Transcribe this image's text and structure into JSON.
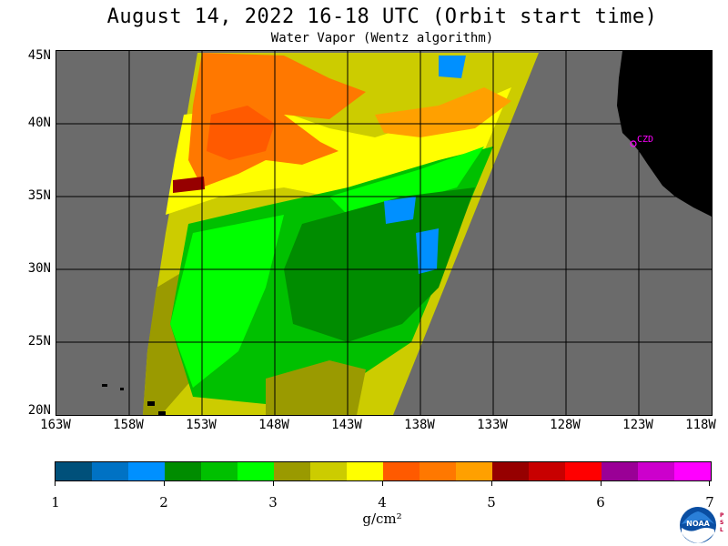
{
  "header": {
    "title": "August 14, 2022  16-18 UTC  (Orbit start time)",
    "subtitle": "Water Vapor (Wentz algorithm)"
  },
  "map": {
    "lat_labels": [
      "45N",
      "40N",
      "35N",
      "30N",
      "25N",
      "20N"
    ],
    "lon_labels": [
      "163W",
      "158W",
      "153W",
      "148W",
      "143W",
      "138W",
      "133W",
      "128W",
      "123W",
      "118W"
    ],
    "station_label": "CZD",
    "colors": {
      "no_data": "#6b6b6b",
      "land": "#000000",
      "grid": "#000000",
      "station": "#ff00ff"
    }
  },
  "colorbar": {
    "tick_labels": [
      "1",
      "2",
      "3",
      "4",
      "5",
      "6",
      "7"
    ],
    "unit": "g/cm²",
    "colors": [
      "#00507a",
      "#0072c4",
      "#0090ff",
      "#008c00",
      "#00c000",
      "#00ff00",
      "#9a9a00",
      "#cccc00",
      "#ffff00",
      "#ff5a00",
      "#ff7800",
      "#ffa000",
      "#960000",
      "#c80000",
      "#ff0000",
      "#9a0096",
      "#cc00cc",
      "#ff00ff"
    ]
  },
  "logo": {
    "label": "NOAA",
    "side_text": "PSL"
  }
}
